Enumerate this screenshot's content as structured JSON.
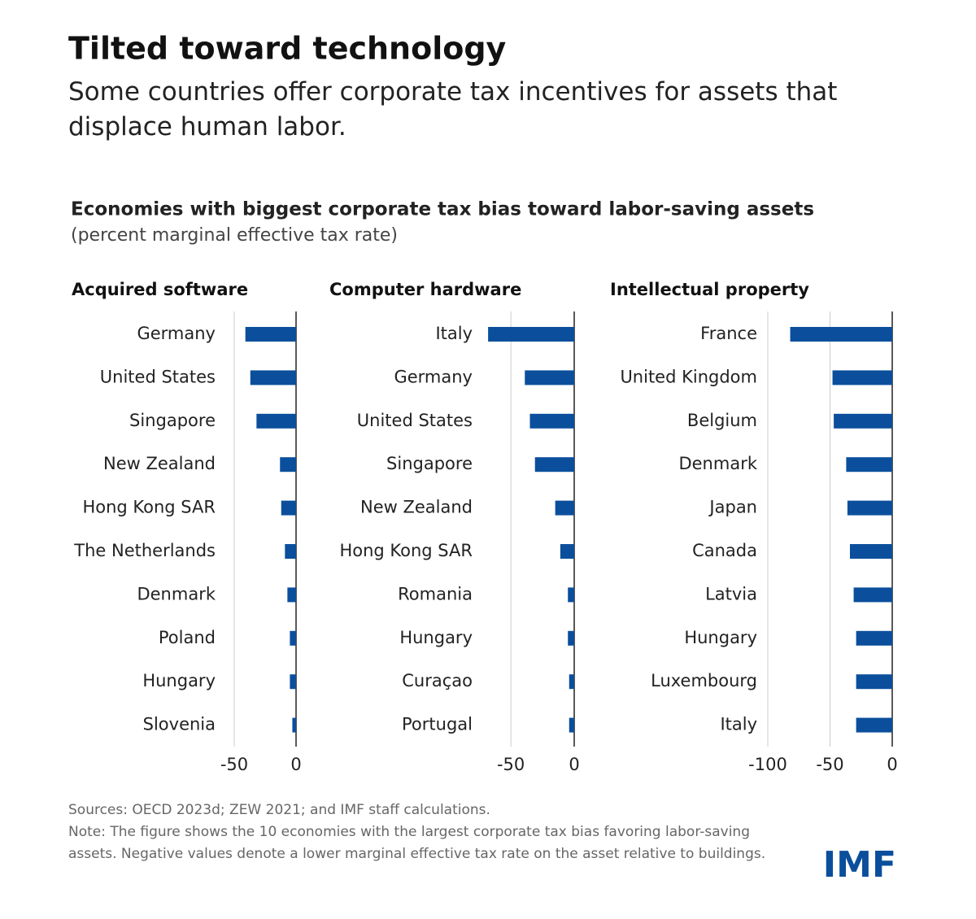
{
  "title": "Tilted toward technology",
  "subtitle": "Some countries offer corporate tax incentives for assets that displace human labor.",
  "figure_title": "Economies with biggest corporate tax bias toward labor-saving assets",
  "figure_subtitle": "(percent marginal effective tax rate)",
  "sources": "Sources: OECD 2023d; ZEW 2021; and IMF staff calculations.",
  "note": "Note: The figure shows the 10 economies with the largest corporate tax bias favoring labor-saving assets. Negative values denote a lower marginal effective tax rate on the asset relative to buildings.",
  "logo": "IMF",
  "chart_data": [
    {
      "type": "bar",
      "orientation": "horizontal",
      "title": "Acquired software",
      "color": "#0b4f9c",
      "categories": [
        "Germany",
        "United States",
        "Singapore",
        "New Zealand",
        "Hong Kong SAR",
        "The Netherlands",
        "Denmark",
        "Poland",
        "Hungary",
        "Slovenia"
      ],
      "values": [
        -41,
        -37,
        -32,
        -13,
        -12,
        -9,
        -7,
        -5,
        -5,
        -3
      ],
      "xlim": [
        -50,
        0
      ],
      "xticks": [
        -50,
        0
      ],
      "grid": true
    },
    {
      "type": "bar",
      "orientation": "horizontal",
      "title": "Computer hardware",
      "color": "#0b4f9c",
      "categories": [
        "Italy",
        "Germany",
        "United States",
        "Singapore",
        "New Zealand",
        "Hong Kong SAR",
        "Romania",
        "Hungary",
        "Curaçao",
        "Portugal"
      ],
      "values": [
        -68,
        -39,
        -35,
        -31,
        -15,
        -11,
        -5,
        -5,
        -4,
        -4
      ],
      "xlim": [
        -70,
        0
      ],
      "xticks": [
        -50,
        0
      ],
      "grid": true
    },
    {
      "type": "bar",
      "orientation": "horizontal",
      "title": "Intellectual property",
      "color": "#0b4f9c",
      "categories": [
        "France",
        "United Kingdom",
        "Belgium",
        "Denmark",
        "Japan",
        "Canada",
        "Latvia",
        "Hungary",
        "Luxembourg",
        "Italy"
      ],
      "values": [
        -82,
        -48,
        -47,
        -37,
        -36,
        -34,
        -31,
        -29,
        -29,
        -29
      ],
      "xlim": [
        -100,
        0
      ],
      "xticks": [
        -100,
        -50,
        0
      ],
      "grid": true
    }
  ]
}
